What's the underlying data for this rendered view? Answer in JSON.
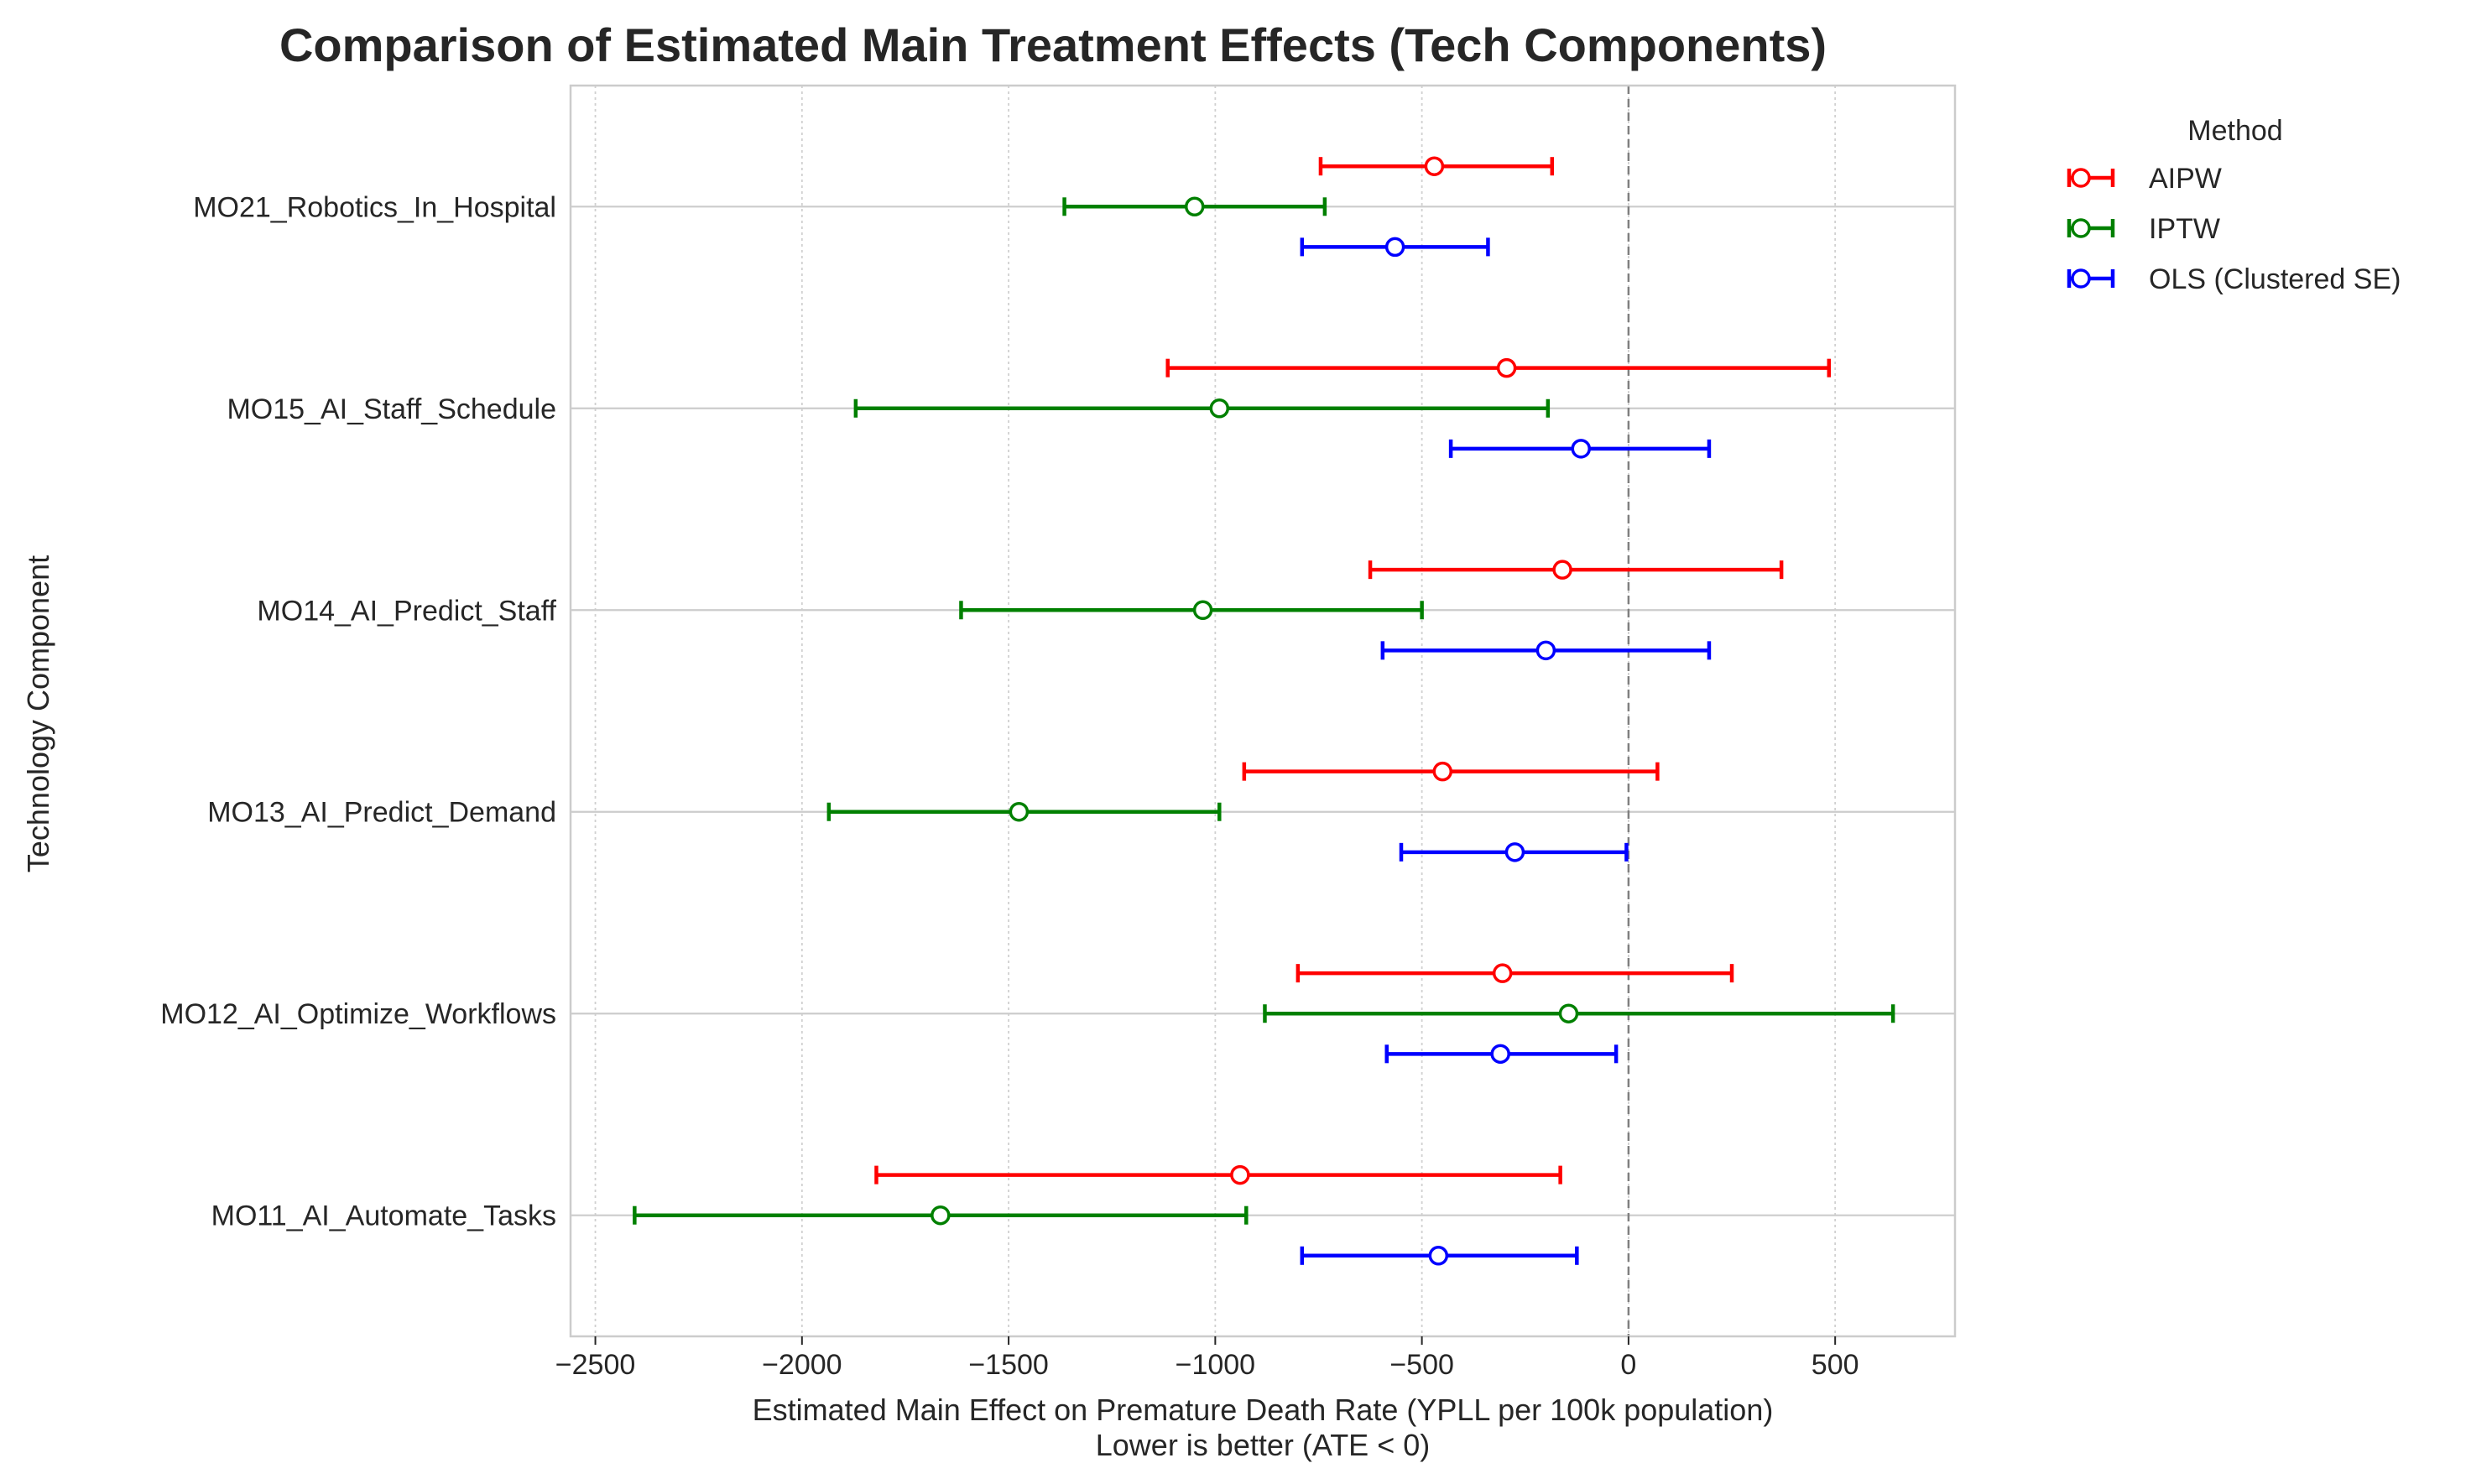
{
  "chart_data": {
    "type": "errorbar",
    "orientation": "horizontal",
    "title": "Comparison of Estimated Main Treatment Effects (Tech Components)",
    "xlabel": "Estimated Main Effect on Premature Death Rate (YPLL per 100k population)",
    "xlabel_sub": "Lower is better (ATE < 0)",
    "ylabel": "Technology Component",
    "xlim": [
      -2560,
      790
    ],
    "x_ticks": [
      -2500,
      -2000,
      -1500,
      -1000,
      -500,
      0,
      500
    ],
    "x_tick_labels": [
      "−2500",
      "−2000",
      "−1500",
      "−1000",
      "−500",
      "0",
      "500"
    ],
    "reference_line_x": 0,
    "categories": [
      "MO11_AI_Automate_Tasks",
      "MO12_AI_Optimize_Workflows",
      "MO13_AI_Predict_Demand",
      "MO14_AI_Predict_Staff",
      "MO15_AI_Staff_Schedule",
      "MO21_Robotics_In_Hospital"
    ],
    "series": [
      {
        "name": "AIPW",
        "color": "#ff0000",
        "offset": 0.2,
        "points": [
          {
            "estimate": -940,
            "lower": -1820,
            "upper": -165
          },
          {
            "estimate": -305,
            "lower": -800,
            "upper": 250
          },
          {
            "estimate": -450,
            "lower": -930,
            "upper": 70
          },
          {
            "estimate": -160,
            "lower": -625,
            "upper": 370
          },
          {
            "estimate": -295,
            "lower": -1115,
            "upper": 485
          },
          {
            "estimate": -470,
            "lower": -745,
            "upper": -185
          }
        ]
      },
      {
        "name": "IPTW",
        "color": "#008000",
        "offset": 0,
        "points": [
          {
            "estimate": -1665,
            "lower": -2405,
            "upper": -925
          },
          {
            "estimate": -145,
            "lower": -880,
            "upper": 640
          },
          {
            "estimate": -1475,
            "lower": -1935,
            "upper": -990
          },
          {
            "estimate": -1030,
            "lower": -1615,
            "upper": -500
          },
          {
            "estimate": -990,
            "lower": -1870,
            "upper": -195
          },
          {
            "estimate": -1050,
            "lower": -1365,
            "upper": -735
          }
        ]
      },
      {
        "name": "OLS (Clustered SE)",
        "color": "#0000ff",
        "offset": -0.2,
        "points": [
          {
            "estimate": -460,
            "lower": -790,
            "upper": -125
          },
          {
            "estimate": -310,
            "lower": -585,
            "upper": -30
          },
          {
            "estimate": -275,
            "lower": -550,
            "upper": -5
          },
          {
            "estimate": -200,
            "lower": -595,
            "upper": 195
          },
          {
            "estimate": -115,
            "lower": -430,
            "upper": 195
          },
          {
            "estimate": -565,
            "lower": -790,
            "upper": -340
          }
        ]
      }
    ],
    "grid": true,
    "legend": {
      "title": "Method",
      "placement": "outside-upper-right"
    }
  }
}
